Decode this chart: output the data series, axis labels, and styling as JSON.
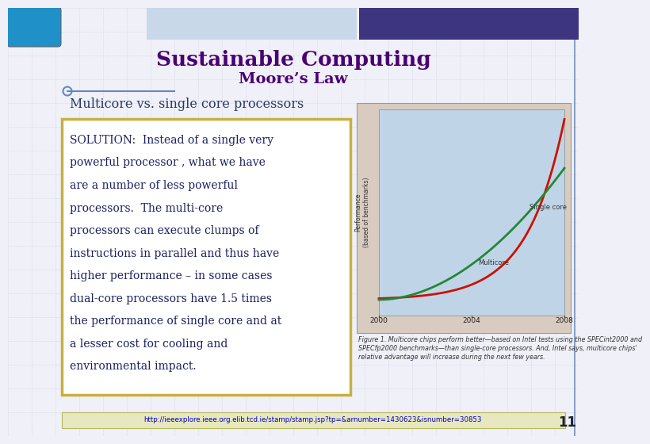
{
  "title": "Sustainable Computing",
  "subtitle": "Moore’s Law",
  "section_label": "Multicore vs. single core processors",
  "solution_lines": [
    "SOLUTION:  Instead of a single very",
    "powerful processor , what we have",
    "are a number of less powerful",
    "processors.  The multi-core",
    "processors can execute clumps of",
    "instructions in parallel and thus have",
    "higher performance – in some cases",
    "dual-core processors have 1.5 times",
    "the performance of single core and at",
    "a lesser cost for cooling and",
    "environmental impact."
  ],
  "url_text": "http://ieeexplore.ieee.org.elib.tcd.ie/stamp/stamp.jsp?tp=&arnumber=1430623&isnumber=30853",
  "page_number": "11",
  "bg_color": "#f0f0f8",
  "grid_color": "#c8d0e0",
  "title_color": "#4a0072",
  "subtitle_color": "#4a0072",
  "section_color": "#2a3a6a",
  "solution_box_border": "#c8b040",
  "solution_text_color": "#1a2060",
  "header_bar_color": "#3d3580",
  "right_border_color": "#7090c0",
  "url_color": "#0000cc",
  "url_bg": "#e8e8c0",
  "chart_caption": "Figure 1. Multicore chips perform better—based on Intel tests using the SPECint2000 and\nSPECfp2000 benchmarks—than single-core processors. And, Intel says, multicore chips'\nrelative advantage will increase during the next few years.",
  "chart_caption_color": "#333333",
  "chart_bg": "#d8ccc0",
  "chart_plot_bg": "#c0d4e8",
  "multicore_color": "#cc1100",
  "singlecore_color": "#228833"
}
